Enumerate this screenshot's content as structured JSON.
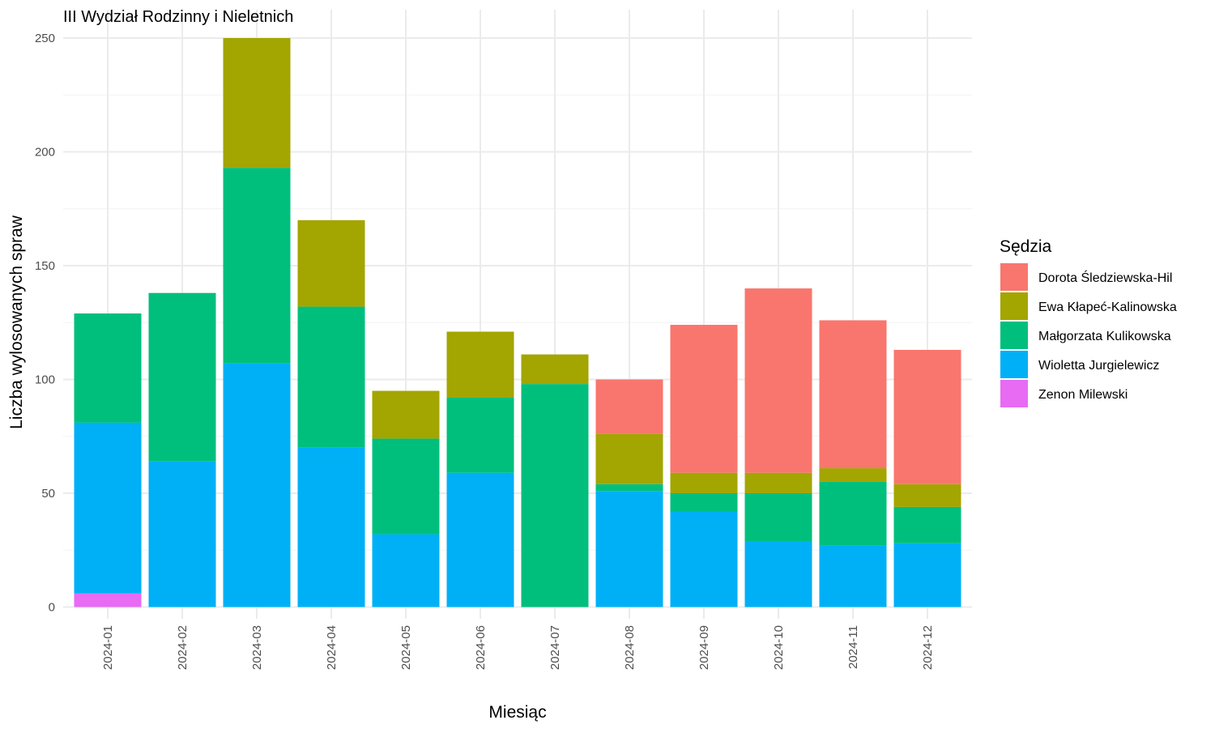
{
  "chart_data": {
    "type": "bar",
    "stacked": true,
    "title": "III Wydział Rodzinny i Nieletnich",
    "xlabel": "Miesiąc",
    "ylabel": "Liczba wylosowanych spraw",
    "ylim": [
      0,
      250
    ],
    "yticks": [
      0,
      50,
      100,
      150,
      200,
      250
    ],
    "grid": true,
    "legend": {
      "title": "Sędzia",
      "placement": "right"
    },
    "categories": [
      "2024-01",
      "2024-02",
      "2024-03",
      "2024-04",
      "2024-05",
      "2024-06",
      "2024-07",
      "2024-08",
      "2024-09",
      "2024-10",
      "2024-11",
      "2024-12"
    ],
    "series": [
      {
        "name": "Dorota Śledziewska-Hil",
        "color": "#F8766D",
        "values": [
          0,
          0,
          0,
          0,
          0,
          0,
          0,
          24,
          65,
          81,
          65,
          59
        ]
      },
      {
        "name": "Ewa Kłapeć-Kalinowska",
        "color": "#A3A500",
        "values": [
          0,
          0,
          57,
          38,
          21,
          29,
          13,
          22,
          9,
          9,
          6,
          10
        ]
      },
      {
        "name": "Małgorzata Kulikowska",
        "color": "#00BF7D",
        "values": [
          48,
          74,
          86,
          62,
          42,
          33,
          98,
          3,
          8,
          21,
          28,
          16
        ]
      },
      {
        "name": "Wioletta Jurgielewicz",
        "color": "#00B0F6",
        "values": [
          75,
          64,
          107,
          70,
          32,
          59,
          0,
          51,
          42,
          29,
          27,
          28
        ]
      },
      {
        "name": "Zenon Milewski",
        "color": "#E76BF3",
        "values": [
          6,
          0,
          0,
          0,
          0,
          0,
          0,
          0,
          0,
          0,
          0,
          0
        ]
      }
    ]
  }
}
